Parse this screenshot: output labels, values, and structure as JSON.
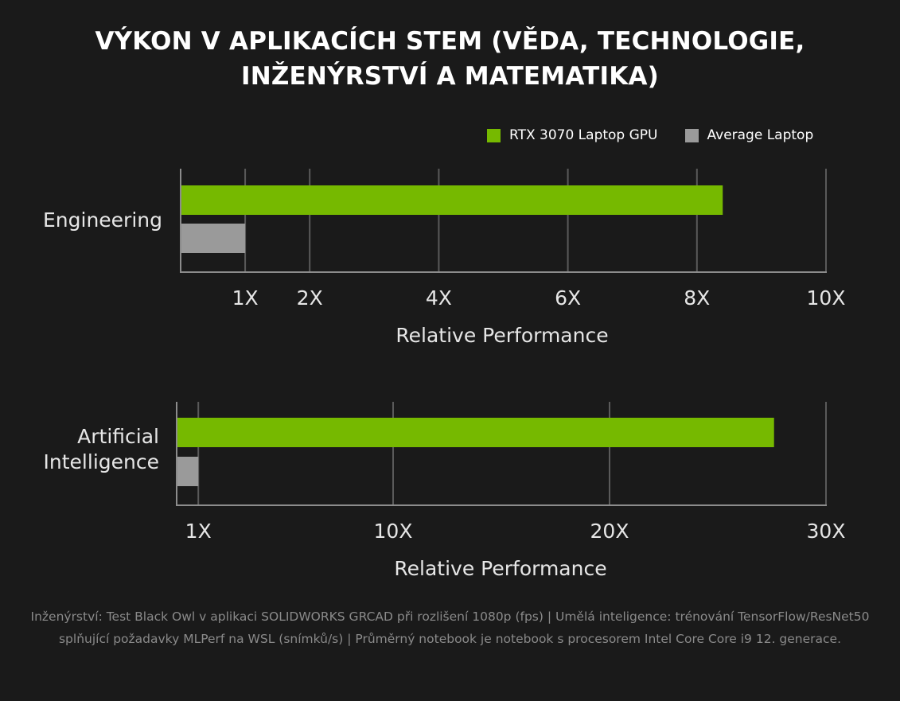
{
  "title_lines": [
    "VÝKON V APLIKACÍCH STEM (VĚDA, TECHNOLOGIE,",
    "INŽENÝRSTVÍ A MATEMATIKA)"
  ],
  "legend": [
    {
      "label": "RTX 3070 Laptop GPU",
      "color": "#76b900"
    },
    {
      "label": "Average Laptop",
      "color": "#9a9a9a"
    }
  ],
  "chart_data": [
    {
      "type": "bar",
      "orientation": "horizontal",
      "categories": [
        "Engineering"
      ],
      "series": [
        {
          "name": "RTX 3070 Laptop GPU",
          "values": [
            8.4
          ],
          "color": "#76b900"
        },
        {
          "name": "Average Laptop",
          "values": [
            1
          ],
          "color": "#9a9a9a"
        }
      ],
      "xlabel": "Relative Performance",
      "ticks": [
        1,
        2,
        4,
        6,
        8,
        10
      ],
      "tick_labels": [
        "1X",
        "2X",
        "4X",
        "6X",
        "8X",
        "10X"
      ],
      "xlim": [
        0,
        10
      ],
      "grid": true
    },
    {
      "type": "bar",
      "orientation": "horizontal",
      "categories": [
        "Artificial Intelligence"
      ],
      "category_lines": [
        [
          "Artificial",
          "Intelligence"
        ]
      ],
      "series": [
        {
          "name": "RTX 3070 Laptop GPU",
          "values": [
            27.6
          ],
          "color": "#76b900"
        },
        {
          "name": "Average Laptop",
          "values": [
            1
          ],
          "color": "#9a9a9a"
        }
      ],
      "xlabel": "Relative Performance",
      "ticks": [
        1,
        10,
        20,
        30
      ],
      "tick_labels": [
        "1X",
        "10X",
        "20X",
        "30X"
      ],
      "xlim": [
        0,
        30
      ],
      "grid": true
    }
  ],
  "footnote": "Inženýrství: Test Black Owl v aplikaci SOLIDWORKS GRCAD při rozlišení 1080p (fps) | Umělá inteligence: trénování TensorFlow/ResNet50 splňující požadavky MLPerf na WSL (snímků/s) | Průměrný notebook je notebook s procesorem Intel Core Core i9 12. generace."
}
